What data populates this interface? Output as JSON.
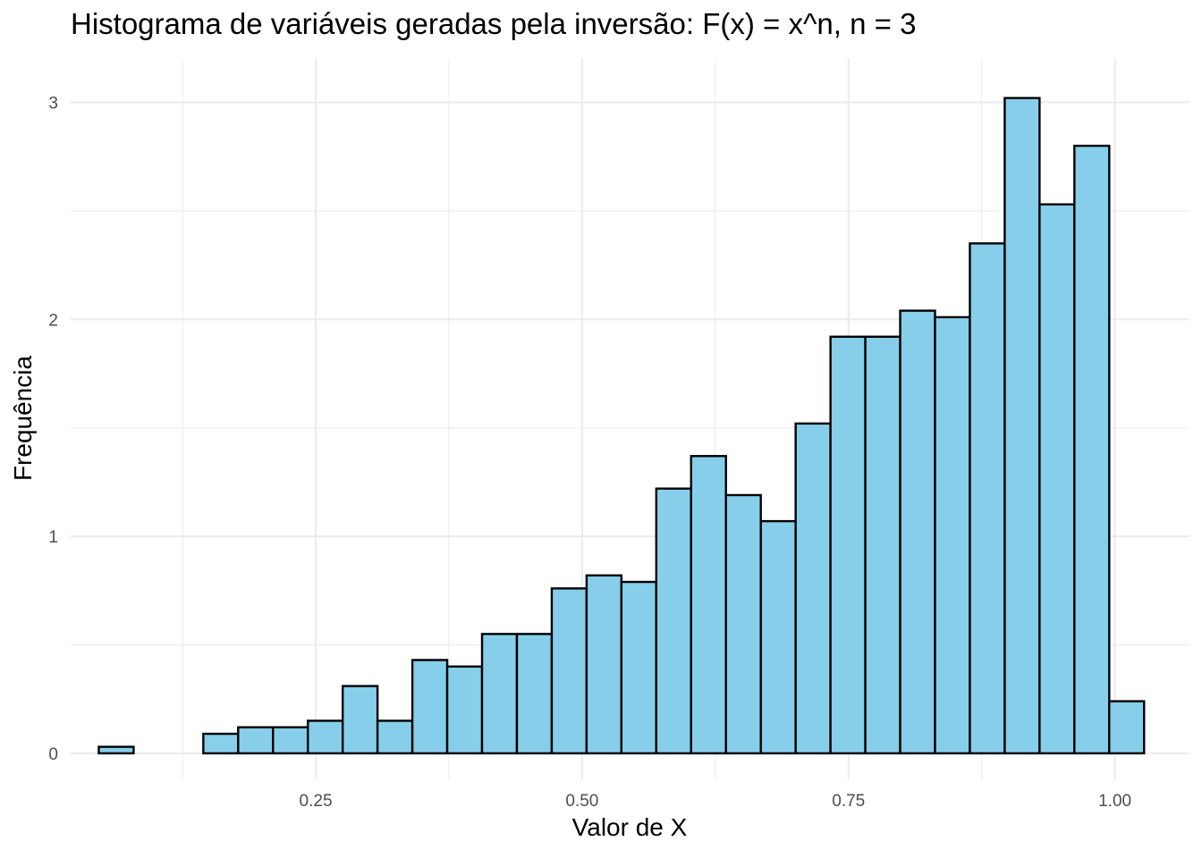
{
  "chart_data": {
    "type": "bar",
    "title": "Histograma de variáveis geradas pela inversão: F(x) = x^n, n = 3",
    "xlabel": "Valor de X",
    "ylabel": "Frequência",
    "xlim": [
      0.02,
      1.07
    ],
    "ylim": [
      -0.12,
      3.2
    ],
    "grid": true,
    "legend": "none",
    "bar_fill": "#87ceeb",
    "bar_stroke": "#000000",
    "gridline_color": "#ebebeb",
    "x_ticks": [
      {
        "value": 0.25,
        "label": "0.25"
      },
      {
        "value": 0.5,
        "label": "0.50"
      },
      {
        "value": 0.75,
        "label": "0.75"
      },
      {
        "value": 1.0,
        "label": "1.00"
      }
    ],
    "y_ticks": [
      {
        "value": 0,
        "label": "0"
      },
      {
        "value": 1,
        "label": "1"
      },
      {
        "value": 2,
        "label": "2"
      },
      {
        "value": 3,
        "label": "3"
      }
    ],
    "bins": [
      {
        "x0": 0.0464,
        "x1": 0.0791,
        "y": 0.03
      },
      {
        "x0": 0.0791,
        "x1": 0.1118,
        "y": 0.0
      },
      {
        "x0": 0.1118,
        "x1": 0.1445,
        "y": 0.0
      },
      {
        "x0": 0.1445,
        "x1": 0.1772,
        "y": 0.09
      },
      {
        "x0": 0.1772,
        "x1": 0.2099,
        "y": 0.12
      },
      {
        "x0": 0.2099,
        "x1": 0.2426,
        "y": 0.12
      },
      {
        "x0": 0.2426,
        "x1": 0.2753,
        "y": 0.15
      },
      {
        "x0": 0.2753,
        "x1": 0.308,
        "y": 0.31
      },
      {
        "x0": 0.308,
        "x1": 0.3407,
        "y": 0.15
      },
      {
        "x0": 0.3407,
        "x1": 0.3734,
        "y": 0.43
      },
      {
        "x0": 0.3734,
        "x1": 0.4061,
        "y": 0.4
      },
      {
        "x0": 0.4061,
        "x1": 0.4388,
        "y": 0.55
      },
      {
        "x0": 0.4388,
        "x1": 0.4715,
        "y": 0.55
      },
      {
        "x0": 0.4715,
        "x1": 0.5042,
        "y": 0.76
      },
      {
        "x0": 0.5042,
        "x1": 0.5369,
        "y": 0.82
      },
      {
        "x0": 0.5369,
        "x1": 0.5696,
        "y": 0.79
      },
      {
        "x0": 0.5696,
        "x1": 0.6023,
        "y": 1.22
      },
      {
        "x0": 0.6023,
        "x1": 0.635,
        "y": 1.37
      },
      {
        "x0": 0.635,
        "x1": 0.6677,
        "y": 1.19
      },
      {
        "x0": 0.6677,
        "x1": 0.7004,
        "y": 1.07
      },
      {
        "x0": 0.7004,
        "x1": 0.7331,
        "y": 1.52
      },
      {
        "x0": 0.7331,
        "x1": 0.7658,
        "y": 1.92
      },
      {
        "x0": 0.7658,
        "x1": 0.7985,
        "y": 1.92
      },
      {
        "x0": 0.7985,
        "x1": 0.8312,
        "y": 2.04
      },
      {
        "x0": 0.8312,
        "x1": 0.8639,
        "y": 2.01
      },
      {
        "x0": 0.8639,
        "x1": 0.8966,
        "y": 2.35
      },
      {
        "x0": 0.8966,
        "x1": 0.9293,
        "y": 3.02
      },
      {
        "x0": 0.9293,
        "x1": 0.962,
        "y": 2.53
      },
      {
        "x0": 0.962,
        "x1": 0.9947,
        "y": 2.8
      },
      {
        "x0": 0.9947,
        "x1": 1.0274,
        "y": 0.24
      }
    ]
  }
}
